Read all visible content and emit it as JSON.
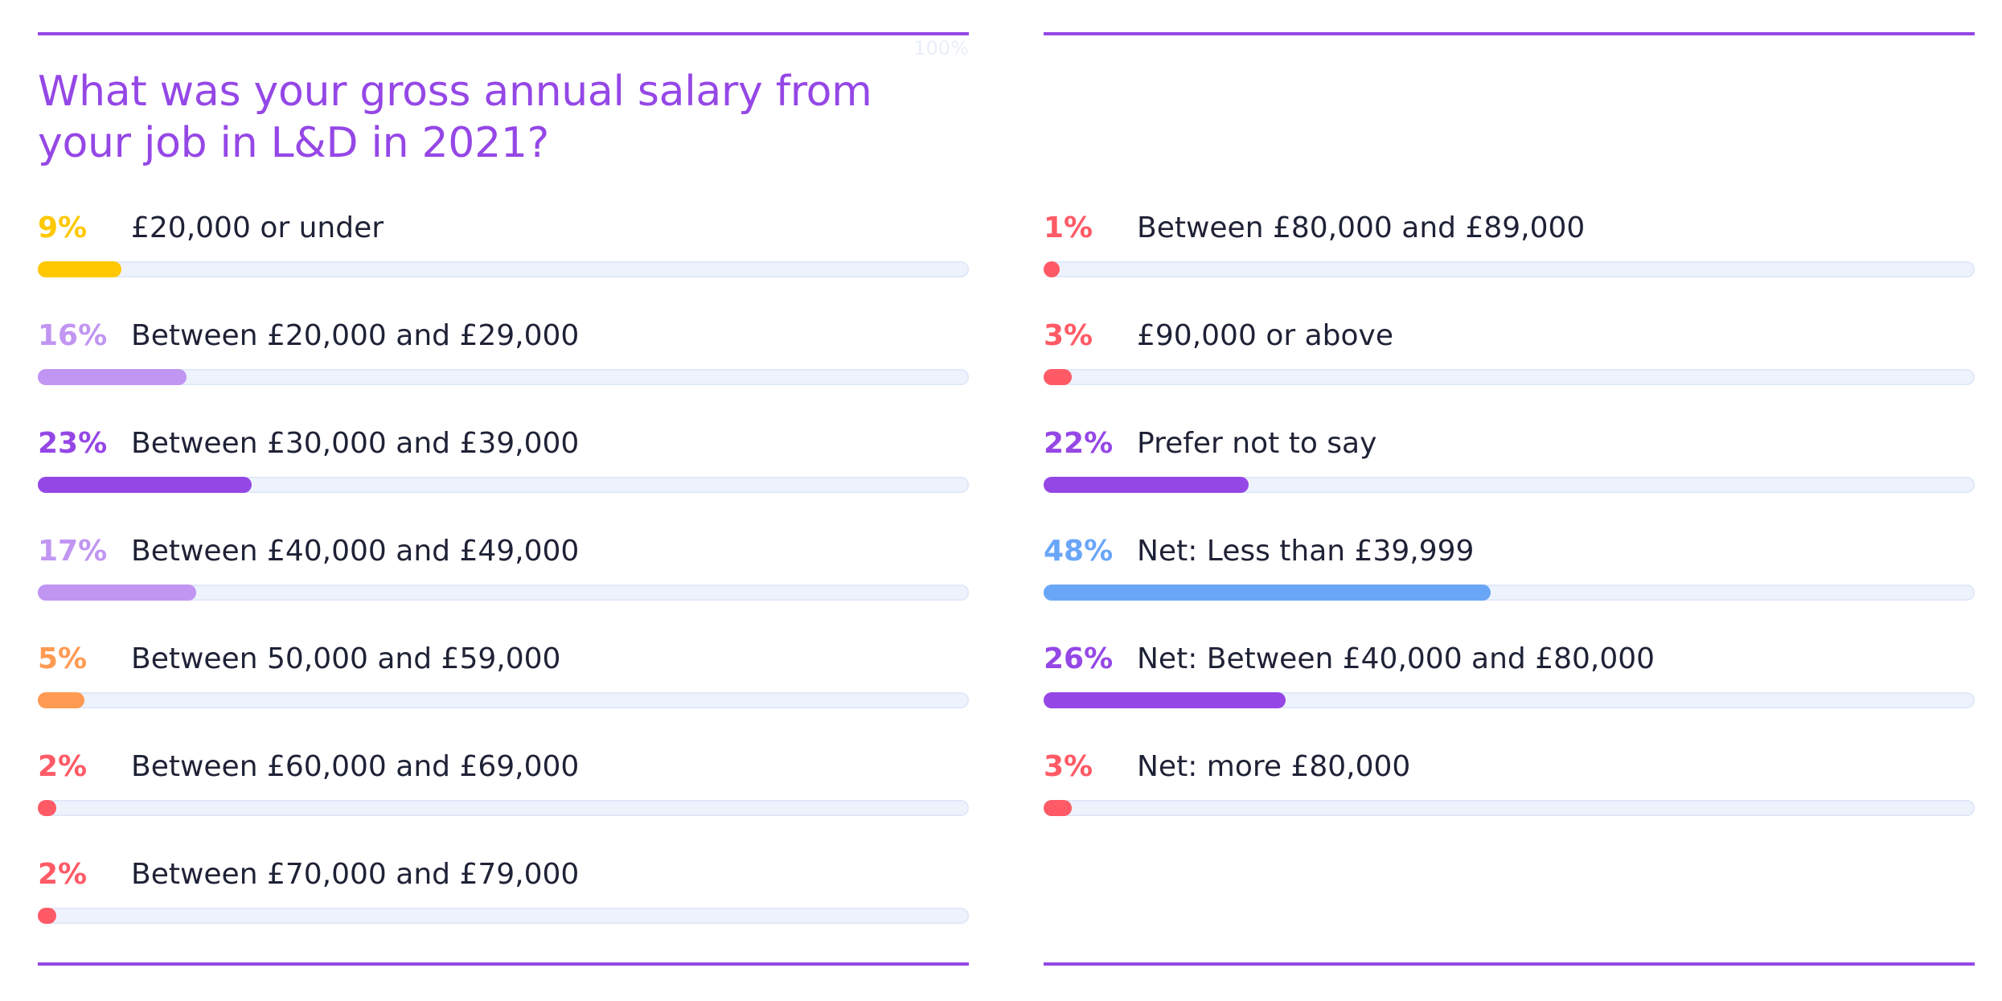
{
  "chart_data": {
    "type": "bar",
    "orientation": "horizontal",
    "title": "What was your gross annual salary from your job in L&D in 2021?",
    "max_label": "100%",
    "xlim": [
      0,
      100
    ],
    "unit": "%",
    "columns": [
      [
        {
          "label": "£20,000 or under",
          "value": 9,
          "color": "#FFC800"
        },
        {
          "label": "Between £20,000 and £29,000",
          "value": 16,
          "color": "#C195F2"
        },
        {
          "label": "Between £30,000 and £39,000",
          "value": 23,
          "color": "#9547E6"
        },
        {
          "label": "Between £40,000 and £49,000",
          "value": 17,
          "color": "#C195F2"
        },
        {
          "label": "Between 50,000 and £59,000",
          "value": 5,
          "color": "#FF9A52"
        },
        {
          "label": "Between £60,000 and £69,000",
          "value": 2,
          "color": "#FF5A66"
        },
        {
          "label": "Between £70,000 and £79,000",
          "value": 2,
          "color": "#FF5A66"
        }
      ],
      [
        {
          "label": "Between £80,000 and £89,000",
          "value": 1,
          "color": "#FF5A66"
        },
        {
          "label": "£90,000 or above",
          "value": 3,
          "color": "#FF5A66"
        },
        {
          "label": "Prefer not to say",
          "value": 22,
          "color": "#9547E6"
        },
        {
          "label": "Net: Less than £39,999",
          "value": 48,
          "color": "#6AA6F8"
        },
        {
          "label": "Net: Between £40,000 and £80,000",
          "value": 26,
          "color": "#9547E6"
        },
        {
          "label": "Net: more £80,000",
          "value": 3,
          "color": "#FF5A66"
        }
      ]
    ]
  }
}
